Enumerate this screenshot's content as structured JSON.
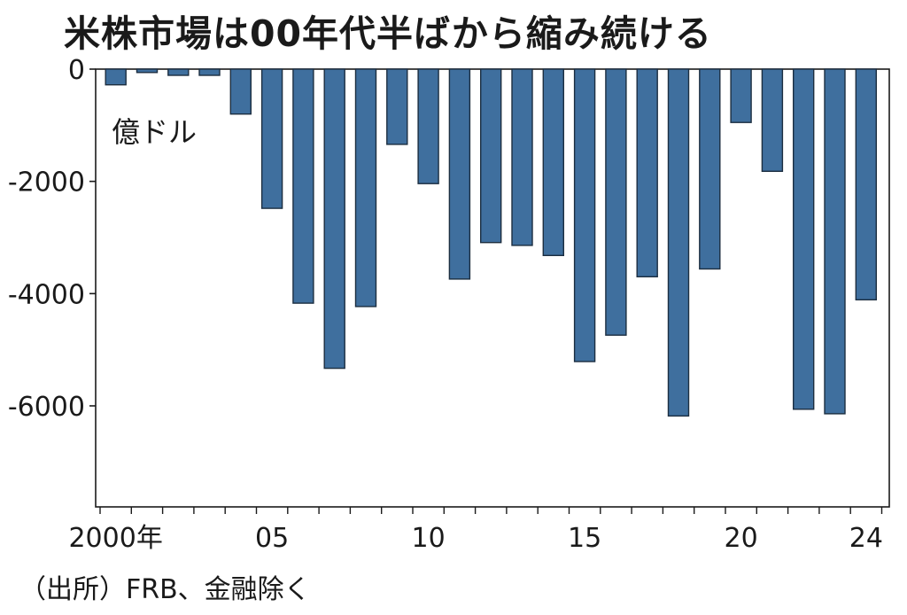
{
  "chart_data": {
    "type": "bar",
    "title": "米株市場は00年代半ばから縮み続ける",
    "unit_label": "億ドル",
    "source": "（出所）FRB、金融除く",
    "ylim": [
      -7800,
      0
    ],
    "yticks": [
      0,
      -2000,
      -4000,
      -6000
    ],
    "ytick_labels": [
      "0",
      "-2000",
      "-4000",
      "-6000"
    ],
    "x": [
      2000,
      2001,
      2002,
      2003,
      2004,
      2005,
      2006,
      2007,
      2008,
      2009,
      2010,
      2011,
      2012,
      2013,
      2014,
      2015,
      2016,
      2017,
      2018,
      2019,
      2020,
      2021,
      2022,
      2023,
      2024
    ],
    "values": [
      -280,
      -60,
      -110,
      -110,
      -800,
      -2480,
      -4170,
      -5330,
      -4230,
      -1340,
      -2040,
      -3740,
      -3090,
      -3140,
      -3320,
      -5210,
      -4740,
      -3700,
      -6180,
      -3560,
      -950,
      -1820,
      -6060,
      -6140,
      -4110
    ],
    "xticks": [
      {
        "year": 2000,
        "label": "2000年"
      },
      {
        "year": 2005,
        "label": "05"
      },
      {
        "year": 2010,
        "label": "10"
      },
      {
        "year": 2015,
        "label": "15"
      },
      {
        "year": 2020,
        "label": "20"
      },
      {
        "year": 2024,
        "label": "24"
      }
    ],
    "bar_color": "#3f6f9e",
    "bar_edge_color": "#1c2e40",
    "grid": false
  }
}
